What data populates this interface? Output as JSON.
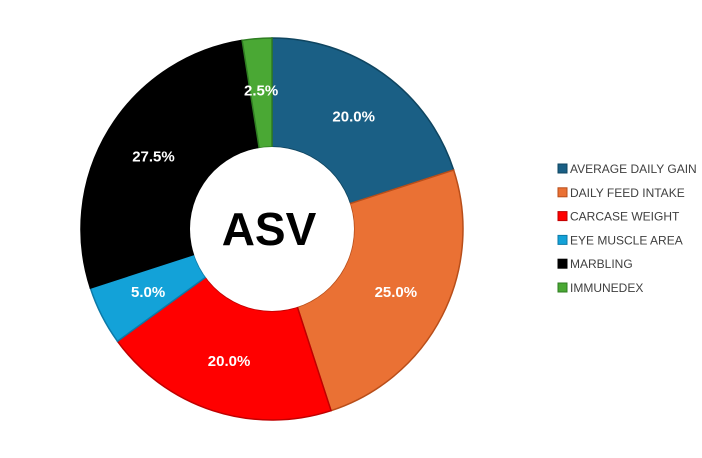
{
  "chart_data": {
    "type": "pie",
    "variant": "donut",
    "center_label": "ASV",
    "categories": [
      "AVERAGE DAILY GAIN",
      "DAILY FEED INTAKE",
      "CARCASE WEIGHT",
      "EYE MUSCLE AREA",
      "MARBLING",
      "IMMUNEDEX"
    ],
    "values": [
      20.0,
      25.0,
      20.0,
      5.0,
      27.5,
      2.5
    ],
    "value_labels": [
      "20.0%",
      "25.0%",
      "20.0%",
      "5.0%",
      "27.5%",
      "2.5%"
    ],
    "colors": [
      "#1a5f85",
      "#ea7134",
      "#ff0000",
      "#13a2d8",
      "#000000",
      "#4aa834"
    ],
    "edge_colors": [
      "#0f4560",
      "#b84e1a",
      "#c00000",
      "#0c7aa8",
      "#000000",
      "#2f7d22"
    ],
    "legend_position": "right"
  }
}
